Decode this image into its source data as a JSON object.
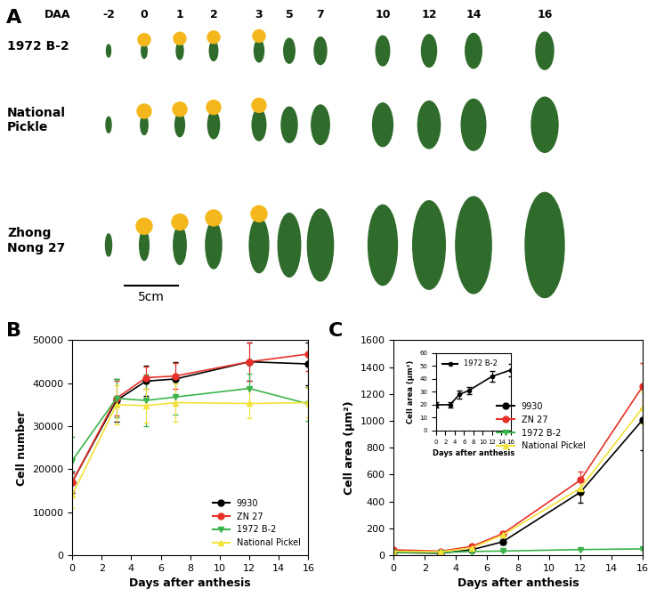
{
  "photo_panel": {
    "panel": "A",
    "header": "DAA",
    "days": [
      -2,
      0,
      1,
      2,
      3,
      5,
      7,
      10,
      12,
      14,
      16
    ],
    "rows": [
      "1972 B-2",
      "National\nPickle",
      "Zhong\nNong 27"
    ],
    "scale_bar": "5cm"
  },
  "chart_data": [
    {
      "panel": "B",
      "type": "line",
      "x_label": "Days after anthesis",
      "y_label": "Cell number",
      "x": [
        0,
        3,
        5,
        7,
        12,
        16
      ],
      "xlim": [
        0,
        16
      ],
      "xticks": [
        0,
        2,
        4,
        6,
        8,
        10,
        12,
        14,
        16
      ],
      "ylim": [
        0,
        50000
      ],
      "yticks": [
        0,
        10000,
        20000,
        30000,
        40000,
        50000
      ],
      "legend": "lower right",
      "series": [
        {
          "name": "9930",
          "color": "#000000",
          "marker": "circle",
          "line_style": "solid",
          "values": [
            17000,
            36000,
            40500,
            41000,
            45000,
            44500
          ],
          "errors": [
            2500,
            5000,
            3500,
            4000,
            4500,
            5000
          ]
        },
        {
          "name": "ZN 27",
          "color": "#e8312a",
          "marker": "circle",
          "line_style": "solid",
          "values": [
            17000,
            36500,
            41300,
            41700,
            45000,
            46800
          ],
          "errors": [
            2000,
            4000,
            2500,
            3000,
            4500,
            4000
          ]
        },
        {
          "name": "1972 B-2",
          "color": "#3cb44b",
          "marker": "triangle_down",
          "line_style": "solid",
          "values": [
            22000,
            36500,
            36000,
            36800,
            38800,
            35200
          ],
          "errors": [
            5500,
            4500,
            6000,
            4000,
            3500,
            4000
          ]
        },
        {
          "name": "National Pickel",
          "color": "#f2e23a",
          "marker": "triangle_up",
          "line_style": "solid",
          "values": [
            14000,
            35000,
            34800,
            35500,
            35300,
            35500
          ],
          "errors": [
            3000,
            4500,
            4000,
            4500,
            3500,
            3500
          ]
        }
      ]
    },
    {
      "panel": "C",
      "type": "line",
      "x_label": "Days after anthesis",
      "y_label": "Cell area (μm²)",
      "x": [
        0,
        3,
        5,
        7,
        12,
        16
      ],
      "xlim": [
        0,
        16
      ],
      "xticks": [
        0,
        2,
        4,
        6,
        8,
        10,
        12,
        14,
        16
      ],
      "ylim": [
        0,
        1600
      ],
      "yticks": [
        0,
        200,
        400,
        600,
        800,
        1000,
        1200,
        1400,
        1600
      ],
      "legend": "center right",
      "series": [
        {
          "name": "9930",
          "color": "#000000",
          "marker": "circle",
          "line_style": "solid",
          "values": [
            20,
            15,
            40,
            100,
            470,
            1010
          ],
          "errors": [
            5,
            5,
            10,
            20,
            80,
            230
          ]
        },
        {
          "name": "ZN 27",
          "color": "#e8312a",
          "marker": "circle",
          "line_style": "solid",
          "values": [
            40,
            30,
            65,
            160,
            560,
            1260
          ],
          "errors": [
            5,
            5,
            10,
            20,
            60,
            170
          ]
        },
        {
          "name": "1972 B-2",
          "color": "#3cb44b",
          "marker": "triangle_down",
          "line_style": "solid",
          "values": [
            20,
            20,
            28,
            31,
            42,
            47
          ],
          "errors": [
            2,
            2,
            3,
            3,
            4,
            5
          ]
        },
        {
          "name": "National Pickel",
          "color": "#f2e23a",
          "marker": "triangle_up",
          "line_style": "solid",
          "values": [
            30,
            25,
            55,
            150,
            500,
            1100
          ],
          "errors": [
            5,
            5,
            10,
            20,
            50,
            120
          ]
        }
      ],
      "inset": {
        "type": "line",
        "x_label": "Days after anthesis",
        "y_label": "Cell area (μm²)",
        "x": [
          0,
          3,
          5,
          7,
          12,
          16
        ],
        "xlim": [
          0,
          16
        ],
        "xticks": [
          0,
          2,
          4,
          6,
          8,
          10,
          12,
          14,
          16
        ],
        "ylim": [
          0,
          60
        ],
        "yticks": [
          0,
          10,
          20,
          30,
          40,
          50,
          60
        ],
        "legend": "upper left",
        "series": [
          {
            "name": "1972 B-2",
            "color": "#000000",
            "marker": "circle",
            "line_style": "solid",
            "values": [
              20,
              20,
              28,
              31,
              42,
              47
            ],
            "errors": [
              2,
              2,
              3,
              3,
              4,
              5
            ]
          }
        ]
      }
    }
  ]
}
